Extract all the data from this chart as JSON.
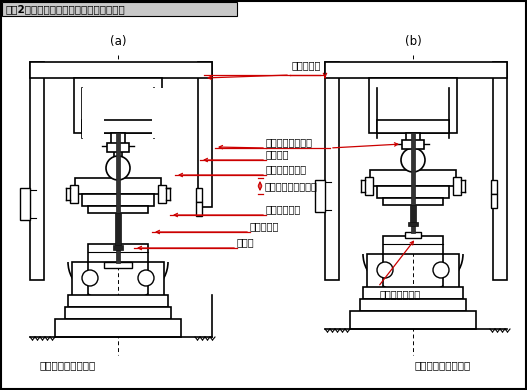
{
  "title": "【図2】ノックアウトとプレス機械の関係",
  "title_bg": "#c8c8c8",
  "label_a": "(a)",
  "label_b": "(b)",
  "caption_a": "加工完了（下死点）",
  "caption_b": "製品排出（上死点）",
  "labels": {
    "press": "プレス機械",
    "stroke": "スライドストローク",
    "kanzashi_adj": "かんざし調節ねじ",
    "kanzashi": "かんざし",
    "knockout_bar": "ノックアウト棒",
    "knockout": "ノックアウト",
    "stripper": "ストリッパ",
    "punch": "パンチ",
    "ejected": "排出された製品"
  },
  "red": "#cc0000",
  "black": "#000000",
  "white": "#ffffff",
  "bg": "#ffffff"
}
